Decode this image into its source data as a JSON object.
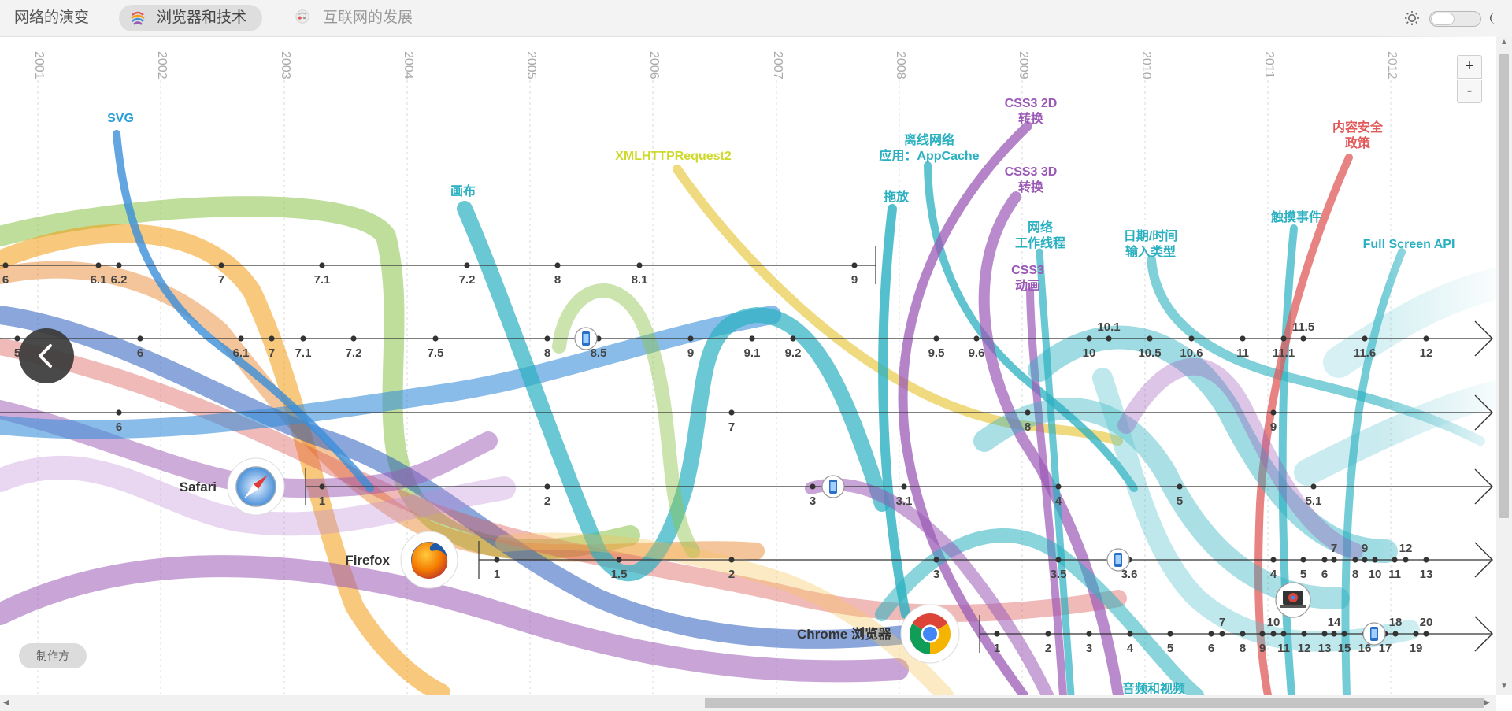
{
  "nav": {
    "evolution": "网络的演变",
    "browsers": "浏览器和技术",
    "internet": "互联网的发展"
  },
  "controls": {
    "zoom_in": "+",
    "zoom_out": "-",
    "credits": "制作方"
  },
  "icons": {
    "sun": "sun-icon",
    "moon": "moon-icon",
    "back": "chevron-left-icon",
    "mobile": "mobile-phone-icon",
    "chromebook": "laptop-icon"
  },
  "years": [
    "2001",
    "2002",
    "2003",
    "2004",
    "2005",
    "2006",
    "2007",
    "2008",
    "2009",
    "2010",
    "2011",
    "2012"
  ],
  "browsers": [
    {
      "id": "ie",
      "name": "",
      "color": "#444",
      "ticks": [
        {
          "v": "6",
          "x": 7
        },
        {
          "v": "6.1",
          "x": 125
        },
        {
          "v": "6.2",
          "x": 151
        },
        {
          "v": "7",
          "x": 281
        },
        {
          "v": "7.1",
          "x": 409
        },
        {
          "v": "7.2",
          "x": 593
        },
        {
          "v": "8",
          "x": 708
        },
        {
          "v": "8.1",
          "x": 812
        },
        {
          "v": "9",
          "x": 1085
        }
      ]
    },
    {
      "id": "opera",
      "name": "",
      "color": "#444",
      "ticks": [
        {
          "v": "5",
          "x": 22
        },
        {
          "v": "6",
          "x": 178
        },
        {
          "v": "6.1",
          "x": 306
        },
        {
          "v": "7",
          "x": 345
        },
        {
          "v": "7.1",
          "x": 385
        },
        {
          "v": "7.2",
          "x": 449
        },
        {
          "v": "7.5",
          "x": 553
        },
        {
          "v": "8",
          "x": 695
        },
        {
          "v": "8.5",
          "x": 760
        },
        {
          "v": "9",
          "x": 877
        },
        {
          "v": "9.1",
          "x": 955
        },
        {
          "v": "9.2",
          "x": 1007
        },
        {
          "v": "9.5",
          "x": 1189
        },
        {
          "v": "9.6",
          "x": 1240
        },
        {
          "v": "10",
          "x": 1383
        },
        {
          "v": "10.1",
          "x": 1408,
          "above": true
        },
        {
          "v": "10.5",
          "x": 1460
        },
        {
          "v": "10.6",
          "x": 1513
        },
        {
          "v": "11",
          "x": 1578
        },
        {
          "v": "11.1",
          "x": 1630
        },
        {
          "v": "11.5",
          "x": 1655,
          "above": true
        },
        {
          "v": "11.6",
          "x": 1733
        },
        {
          "v": "12",
          "x": 1811
        }
      ]
    },
    {
      "id": "ie-legacy",
      "name": "",
      "color": "#444",
      "ticks": [
        {
          "v": "6",
          "x": 151
        },
        {
          "v": "7",
          "x": 929
        },
        {
          "v": "8",
          "x": 1305
        },
        {
          "v": "9",
          "x": 1617
        }
      ]
    },
    {
      "id": "safari",
      "name": "Safari",
      "color": "#444",
      "ticks": [
        {
          "v": "1",
          "x": 409
        },
        {
          "v": "2",
          "x": 695
        },
        {
          "v": "3",
          "x": 1032
        },
        {
          "v": "3.1",
          "x": 1148
        },
        {
          "v": "4",
          "x": 1344
        },
        {
          "v": "5",
          "x": 1498
        },
        {
          "v": "5.1",
          "x": 1668
        }
      ]
    },
    {
      "id": "firefox",
      "name": "Firefox",
      "color": "#444",
      "ticks": [
        {
          "v": "1",
          "x": 631
        },
        {
          "v": "1.5",
          "x": 786
        },
        {
          "v": "2",
          "x": 929
        },
        {
          "v": "3",
          "x": 1189
        },
        {
          "v": "3.5",
          "x": 1344
        },
        {
          "v": "3.6",
          "x": 1434
        },
        {
          "v": "4",
          "x": 1617
        },
        {
          "v": "5",
          "x": 1655
        },
        {
          "v": "6",
          "x": 1682
        },
        {
          "v": "7",
          "x": 1694,
          "above": true
        },
        {
          "v": "8",
          "x": 1721
        },
        {
          "v": "9",
          "x": 1733,
          "above": true
        },
        {
          "v": "10",
          "x": 1746
        },
        {
          "v": "11",
          "x": 1771
        },
        {
          "v": "12",
          "x": 1785,
          "above": true
        },
        {
          "v": "13",
          "x": 1811
        }
      ]
    },
    {
      "id": "chrome",
      "name": "Chrome 浏览器",
      "color": "#444",
      "ticks": [
        {
          "v": "1",
          "x": 1266
        },
        {
          "v": "2",
          "x": 1331
        },
        {
          "v": "3",
          "x": 1383
        },
        {
          "v": "4",
          "x": 1435
        },
        {
          "v": "5",
          "x": 1486
        },
        {
          "v": "6",
          "x": 1538
        },
        {
          "v": "7",
          "x": 1552,
          "above": true
        },
        {
          "v": "8",
          "x": 1578
        },
        {
          "v": "9",
          "x": 1603
        },
        {
          "v": "10",
          "x": 1617,
          "above": true
        },
        {
          "v": "11",
          "x": 1630
        },
        {
          "v": "12",
          "x": 1656
        },
        {
          "v": "13",
          "x": 1682
        },
        {
          "v": "14",
          "x": 1694,
          "above": true
        },
        {
          "v": "15",
          "x": 1707
        },
        {
          "v": "16",
          "x": 1733
        },
        {
          "v": "17",
          "x": 1759
        },
        {
          "v": "18",
          "x": 1772,
          "above": true
        },
        {
          "v": "19",
          "x": 1798
        },
        {
          "v": "20",
          "x": 1811,
          "above": true
        }
      ]
    }
  ],
  "technologies": [
    {
      "id": "svg",
      "lines": [
        "SVG"
      ],
      "color": "#2a9fd6"
    },
    {
      "id": "canvas",
      "lines": [
        "画布"
      ],
      "color": "#2ab0c0"
    },
    {
      "id": "xhr2",
      "lines": [
        "XMLHTTPRequest2"
      ],
      "color": "#cfd92a"
    },
    {
      "id": "drag-drop",
      "lines": [
        "拖放"
      ],
      "color": "#2ab0c0"
    },
    {
      "id": "appcache",
      "lines": [
        "离线网络",
        "应用：AppCache"
      ],
      "color": "#2ab0c0"
    },
    {
      "id": "css3-2d",
      "lines": [
        "CSS3 2D",
        "转换"
      ],
      "color": "#9b59b6"
    },
    {
      "id": "css3-3d",
      "lines": [
        "CSS3 3D",
        "转换"
      ],
      "color": "#9b59b6"
    },
    {
      "id": "web-workers",
      "lines": [
        "网络",
        "工作线程"
      ],
      "color": "#2ab0c0"
    },
    {
      "id": "css3-anim",
      "lines": [
        "CSS3",
        "动画"
      ],
      "color": "#9b59b6"
    },
    {
      "id": "date-input",
      "lines": [
        "日期/时间",
        "输入类型"
      ],
      "color": "#2ab0c0"
    },
    {
      "id": "touch",
      "lines": [
        "触摸事件"
      ],
      "color": "#2ab0c0"
    },
    {
      "id": "csp",
      "lines": [
        "内容安全",
        "政策"
      ],
      "color": "#e05a5a"
    },
    {
      "id": "fullscreen",
      "lines": [
        "Full Screen API"
      ],
      "color": "#2ab0c0"
    },
    {
      "id": "audio-video",
      "lines": [
        "音频和视频"
      ],
      "color": "#2ab0c0"
    }
  ],
  "colors": {
    "ie": "#2a5dbc",
    "opera": "#d9534f",
    "firefox": "#f39c12",
    "safari": "#3b8fd9",
    "chrome": "#e6c229",
    "teal": "#2ab0c0",
    "purple": "#9b59b6",
    "green": "#8bc34a"
  }
}
